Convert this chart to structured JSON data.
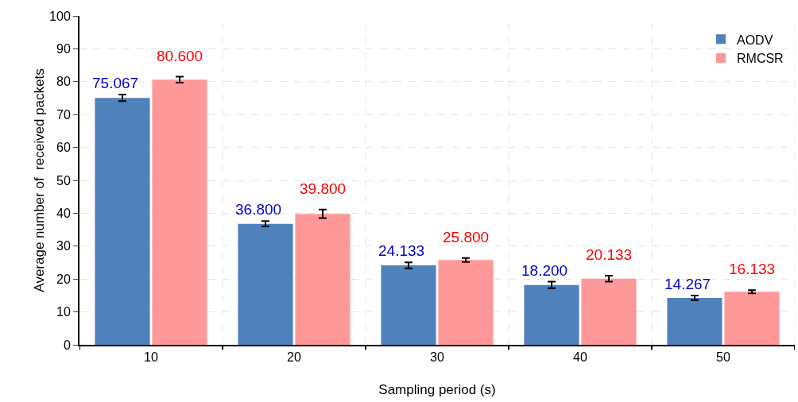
{
  "chart_data": {
    "type": "bar",
    "xlabel": "Sampling period (s)",
    "ylabel": "Average number of  received packets",
    "categories": [
      "10",
      "20",
      "30",
      "40",
      "50"
    ],
    "series": [
      {
        "name": "AODV",
        "color": "#4f81bd",
        "values": [
          75.067,
          36.8,
          24.133,
          18.2,
          14.267
        ],
        "errors": [
          1,
          0.8,
          0.9,
          1,
          0.7
        ],
        "value_labels": [
          "75.067",
          "36.800",
          "24.133",
          "18.200",
          "14.267"
        ]
      },
      {
        "name": "RMCSR",
        "color": "#ff9999",
        "values": [
          80.6,
          39.8,
          25.8,
          20.133,
          16.133
        ],
        "errors": [
          0.9,
          1.3,
          0.6,
          0.9,
          0.5
        ],
        "value_labels": [
          "80.600",
          "39.800",
          "25.800",
          "20.133",
          "16.133"
        ]
      }
    ],
    "ylim": [
      0,
      100
    ],
    "yticks": [
      0,
      10,
      20,
      30,
      40,
      50,
      60,
      70,
      80,
      90,
      100
    ],
    "grid": true,
    "legend": "top right"
  }
}
